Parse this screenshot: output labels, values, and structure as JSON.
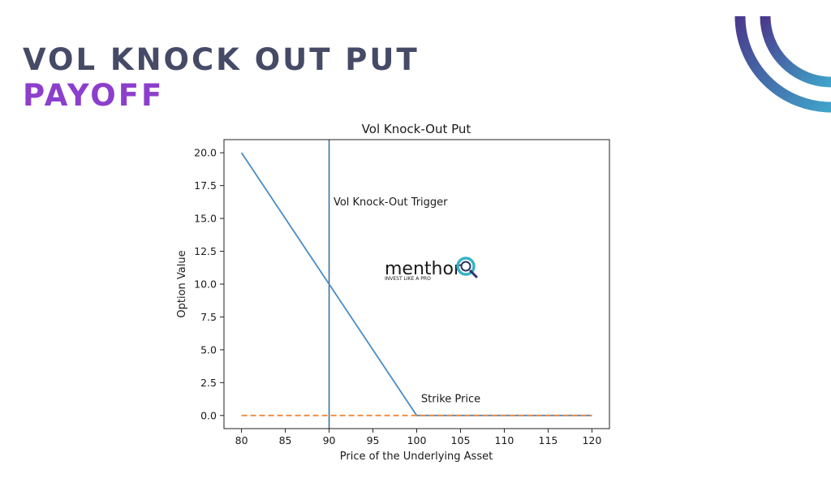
{
  "slide": {
    "title_line1": "VOL KNOCK OUT PUT",
    "title_line2": "PAYOFF",
    "colors": {
      "title_dark": "#454a66",
      "title_accent": "#8c3fcc",
      "arc_start": "#4a3a8c",
      "arc_end": "#3fa3c9"
    }
  },
  "logo": {
    "name": "menthor",
    "mark": "Q",
    "tagline": "INVEST LIKE A PRO"
  },
  "chart_data": {
    "type": "line",
    "title": "Vol Knock-Out Put",
    "xlabel": "Price of the Underlying Asset",
    "ylabel": "Option Value",
    "xlim": [
      78,
      122
    ],
    "ylim": [
      -1.0,
      21.0
    ],
    "xticks": [
      80,
      85,
      90,
      95,
      100,
      105,
      110,
      115,
      120
    ],
    "xtick_labels": [
      "80",
      "85",
      "90",
      "95",
      "100",
      "105",
      "110",
      "115",
      "120"
    ],
    "yticks": [
      0,
      2.5,
      5,
      7.5,
      10,
      12.5,
      15,
      17.5,
      20
    ],
    "ytick_labels": [
      "0.0",
      "2.5",
      "5.0",
      "7.5",
      "10.0",
      "12.5",
      "15.0",
      "17.5",
      "20.0"
    ],
    "series": [
      {
        "style": "solid",
        "color": "#4a8bc4",
        "x": [
          80,
          100,
          120
        ],
        "y": [
          20,
          0,
          0
        ]
      },
      {
        "style": "dashed",
        "color": "#f0893a",
        "x": [
          80,
          120
        ],
        "y": [
          0,
          0
        ]
      }
    ],
    "vlines": [
      {
        "x": 90,
        "color": "#2f6b99"
      }
    ],
    "annotations": [
      {
        "text": "Vol Knock-Out Trigger",
        "x": 90.5,
        "y": 16.0
      },
      {
        "text": "Strike Price",
        "x": 100.5,
        "y": 1.0
      }
    ],
    "grid": false,
    "legend": "none"
  }
}
